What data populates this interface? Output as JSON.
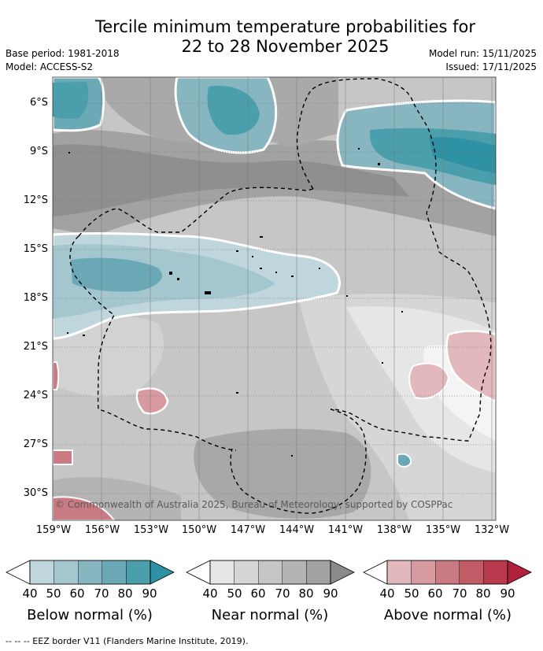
{
  "header": {
    "title_line1": "Tercile minimum temperature probabilities for",
    "title_line2": "22 to 28 November 2025",
    "base_period": "Base period: 1981-2018",
    "model": "Model: ACCESS-S2",
    "model_run": "Model run: 15/11/2025",
    "issued": "Issued: 17/11/2025"
  },
  "map": {
    "lat_labels": [
      "6°S",
      "9°S",
      "12°S",
      "15°S",
      "18°S",
      "21°S",
      "24°S",
      "27°S",
      "30°S"
    ],
    "lon_labels": [
      "159°W",
      "156°W",
      "153°W",
      "150°W",
      "147°W",
      "144°W",
      "141°W",
      "138°W",
      "135°W",
      "132°W"
    ],
    "copyright": "© Commonwealth of Australia 2025, Bureau of Meteorology, supported by COSPPac"
  },
  "legend": {
    "below": {
      "title": "Below normal (%)",
      "ticks": [
        "40",
        "50",
        "60",
        "70",
        "80",
        "90"
      ],
      "colors": [
        "#ffffff",
        "#bfd6dc",
        "#a4c7cf",
        "#87b6c1",
        "#69a8b4",
        "#4b9eac",
        "#2f92a4"
      ]
    },
    "near": {
      "title": "Near normal (%)",
      "ticks": [
        "40",
        "50",
        "60",
        "70",
        "80",
        "90"
      ],
      "colors": [
        "#ffffff",
        "#e6e6e6",
        "#d6d6d6",
        "#c6c6c6",
        "#b4b4b4",
        "#a2a2a2",
        "#8a8a8a"
      ]
    },
    "above": {
      "title": "Above normal (%)",
      "ticks": [
        "40",
        "50",
        "60",
        "70",
        "80",
        "90"
      ],
      "colors": [
        "#ffffff",
        "#e3b8bd",
        "#d69aa0",
        "#c97a82",
        "#c15c67",
        "#b93a4c",
        "#b0213a"
      ]
    }
  },
  "footer": {
    "eez_note": "--  --  -- EEZ border V11 (Flanders Marine Institute, 2019)."
  }
}
